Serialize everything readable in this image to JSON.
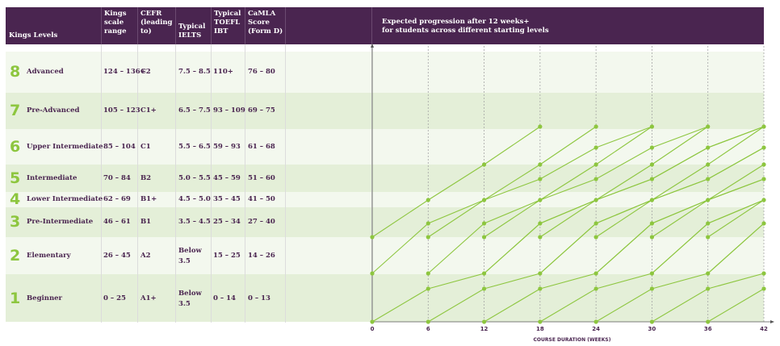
{
  "table": {
    "headers": {
      "level": "Kings Levels",
      "kings_scale": [
        "Kings",
        "scale",
        "range"
      ],
      "cefr": [
        "CEFR",
        "(leading",
        "to)"
      ],
      "ielts": [
        "Typical",
        "IELTS"
      ],
      "toefl": [
        "Typical",
        "TOEFL",
        "IBT"
      ],
      "camla": [
        "CaMLA",
        "Score",
        "(Form D)"
      ]
    },
    "rows": [
      {
        "num": "8",
        "name": "Advanced",
        "kings": "124 – 136+",
        "cefr": "C2",
        "ielts": "7.5 – 8.5",
        "ielts2": "",
        "toefl": "110+",
        "camla": "76 – 80"
      },
      {
        "num": "7",
        "name": "Pre-Advanced",
        "kings": "105 – 123",
        "cefr": "C1+",
        "ielts": "6.5 – 7.5",
        "ielts2": "",
        "toefl": "93 – 109",
        "camla": "69 – 75"
      },
      {
        "num": "6",
        "name": "Upper Intermediate",
        "kings": "85 – 104",
        "cefr": "C1",
        "ielts": "5.5 – 6.5",
        "ielts2": "",
        "toefl": "59 – 93",
        "camla": "61 – 68"
      },
      {
        "num": "5",
        "name": "Intermediate",
        "kings": "70 – 84",
        "cefr": "B2",
        "ielts": "5.0 – 5.5",
        "ielts2": "",
        "toefl": "45 – 59",
        "camla": "51 – 60"
      },
      {
        "num": "4",
        "name": "Lower Intermediate",
        "kings": "62 – 69",
        "cefr": "B1+",
        "ielts": "4.5 – 5.0",
        "ielts2": "",
        "toefl": "35 – 45",
        "camla": "41 – 50"
      },
      {
        "num": "3",
        "name": "Pre-Intermediate",
        "kings": "46 – 61",
        "cefr": "B1",
        "ielts": "3.5 – 4.5",
        "ielts2": "",
        "toefl": "25 – 34",
        "camla": "27 – 40"
      },
      {
        "num": "2",
        "name": "Elementary",
        "kings": "26 – 45",
        "cefr": "A2",
        "ielts": "Below",
        "ielts2": "3.5",
        "toefl": "15 – 25",
        "camla": "14 – 26"
      },
      {
        "num": "1",
        "name": "Beginner",
        "kings": "0 – 25",
        "cefr": "A1+",
        "ielts": "Below",
        "ielts2": "3.5",
        "toefl": "0 – 14",
        "camla": "0 – 13"
      }
    ]
  },
  "chart_data": {
    "type": "line",
    "title": "Expected progression after 12 weeks+ for students across different starting levels",
    "title_lines": [
      "Expected progression after 12 weeks+",
      "for students across different starting levels"
    ],
    "xlabel": "COURSE DURATION (WEEKS)",
    "x": [
      0,
      6,
      12,
      18,
      24,
      30,
      36,
      42
    ],
    "x_tick_labels": [
      "0",
      "6",
      "12",
      "18",
      "24",
      "30",
      "36",
      "42"
    ],
    "xlim": [
      0,
      42
    ],
    "ylim": [
      0,
      136
    ],
    "grid": true,
    "line_color": "#8dc63f",
    "series": [
      {
        "values": [
          0,
          36,
          52,
          70,
          92,
          106,
          124,
          136
        ]
      },
      {
        "values": [
          52,
          70,
          92,
          106,
          124,
          136,
          null,
          null
        ]
      },
      {
        "values": [
          64,
          92,
          112,
          136,
          null,
          null,
          null,
          null
        ]
      }
    ]
  }
}
